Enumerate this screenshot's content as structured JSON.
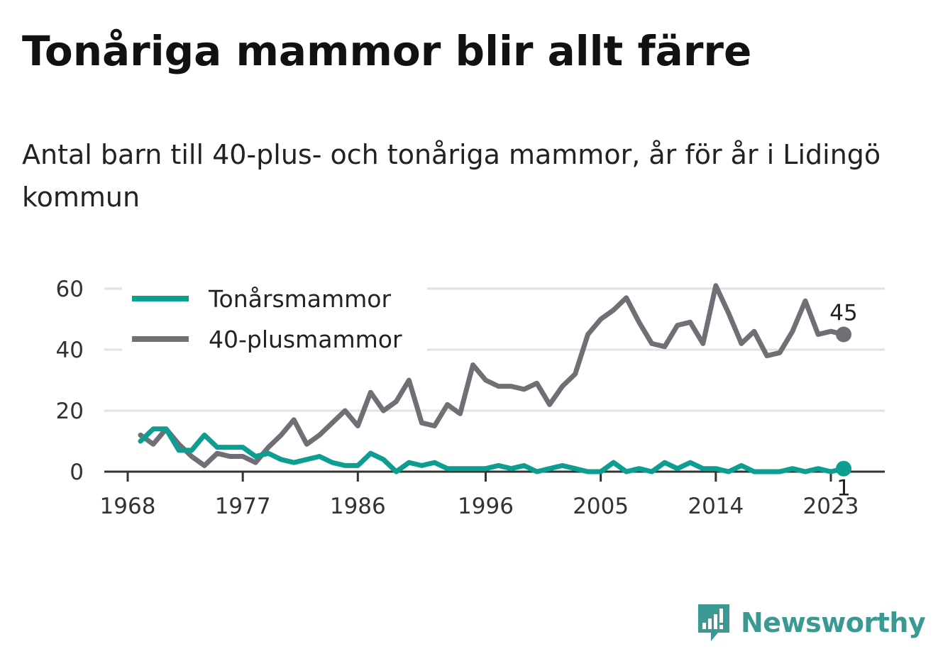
{
  "title": "Tonåriga mammor blir allt färre",
  "subtitle": "Antal barn till 40-plus- och tonåriga mammor, år för år i Lidingö kommun",
  "brand": {
    "name": "Newsworthy",
    "icon": "newsworthy-logo-icon",
    "color": "#3a9a93"
  },
  "chart_data": {
    "type": "line",
    "x_ticks": [
      1968,
      1977,
      1986,
      1996,
      2005,
      2014,
      2023
    ],
    "y_ticks": [
      0,
      20,
      40,
      60
    ],
    "ylim": [
      0,
      60
    ],
    "grid": true,
    "legend_position": "top-left",
    "xlabel": "",
    "ylabel": "",
    "x": [
      1969,
      1970,
      1971,
      1972,
      1973,
      1974,
      1975,
      1976,
      1977,
      1978,
      1979,
      1980,
      1981,
      1982,
      1983,
      1984,
      1985,
      1986,
      1987,
      1988,
      1989,
      1990,
      1991,
      1992,
      1993,
      1994,
      1995,
      1996,
      1997,
      1998,
      1999,
      2000,
      2001,
      2002,
      2003,
      2004,
      2005,
      2006,
      2007,
      2008,
      2009,
      2010,
      2011,
      2012,
      2013,
      2014,
      2015,
      2016,
      2017,
      2018,
      2019,
      2020,
      2021,
      2022,
      2023,
      2024
    ],
    "series": [
      {
        "name": "Tonårsmammor",
        "color": "#0d9e92",
        "values": [
          10,
          14,
          14,
          7,
          7,
          12,
          8,
          8,
          8,
          5,
          6,
          4,
          3,
          4,
          5,
          3,
          2,
          2,
          6,
          4,
          0,
          3,
          2,
          3,
          1,
          1,
          1,
          1,
          2,
          1,
          2,
          0,
          1,
          2,
          1,
          0,
          0,
          3,
          0,
          1,
          0,
          3,
          1,
          3,
          1,
          1,
          0,
          2,
          0,
          0,
          0,
          1,
          0,
          1,
          0,
          1
        ],
        "end_label": "1"
      },
      {
        "name": "40-plusmammor",
        "color": "#6f6f75",
        "values": [
          12,
          9,
          14,
          9,
          5,
          2,
          6,
          5,
          5,
          3,
          8,
          12,
          17,
          9,
          12,
          16,
          20,
          15,
          26,
          20,
          23,
          30,
          16,
          15,
          22,
          19,
          35,
          30,
          28,
          28,
          27,
          29,
          22,
          28,
          32,
          45,
          50,
          53,
          57,
          49,
          42,
          41,
          48,
          49,
          42,
          61,
          52,
          42,
          46,
          38,
          39,
          46,
          56,
          45,
          46,
          45
        ],
        "end_label": "45"
      }
    ]
  }
}
